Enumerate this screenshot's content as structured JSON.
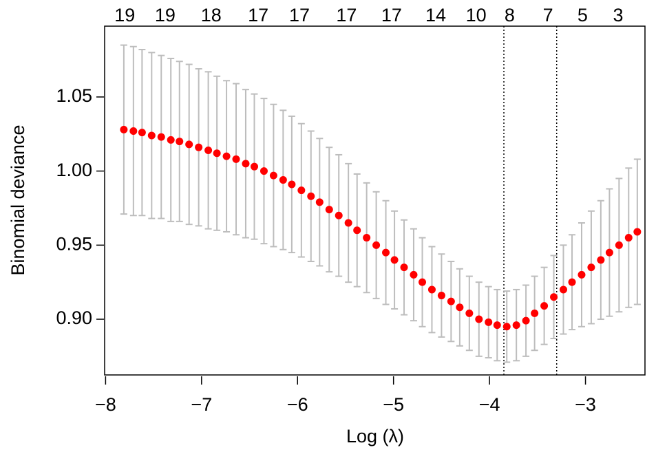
{
  "chart_data": {
    "type": "errorbar",
    "x_label": "Log (λ)",
    "y_label": "Binomial deviance",
    "x": [
      -7.81,
      -7.71,
      -7.62,
      -7.52,
      -7.42,
      -7.32,
      -7.23,
      -7.13,
      -7.03,
      -6.93,
      -6.84,
      -6.74,
      -6.64,
      -6.54,
      -6.45,
      -6.35,
      -6.25,
      -6.15,
      -6.06,
      -5.96,
      -5.86,
      -5.77,
      -5.67,
      -5.57,
      -5.47,
      -5.38,
      -5.28,
      -5.18,
      -5.08,
      -4.99,
      -4.89,
      -4.79,
      -4.7,
      -4.6,
      -4.5,
      -4.4,
      -4.31,
      -4.21,
      -4.11,
      -4.01,
      -3.92,
      -3.82,
      -3.72,
      -3.62,
      -3.53,
      -3.43,
      -3.33,
      -3.23,
      -3.14,
      -3.04,
      -2.94,
      -2.84,
      -2.75,
      -2.65,
      -2.55,
      -2.46
    ],
    "values": [
      1.028,
      1.027,
      1.026,
      1.024,
      1.023,
      1.021,
      1.02,
      1.018,
      1.016,
      1.014,
      1.012,
      1.01,
      1.008,
      1.005,
      1.003,
      1.0,
      0.997,
      0.994,
      0.991,
      0.987,
      0.983,
      0.979,
      0.974,
      0.97,
      0.965,
      0.96,
      0.955,
      0.95,
      0.945,
      0.94,
      0.935,
      0.93,
      0.925,
      0.92,
      0.916,
      0.912,
      0.908,
      0.904,
      0.9,
      0.898,
      0.896,
      0.895,
      0.896,
      0.899,
      0.904,
      0.909,
      0.915,
      0.92,
      0.925,
      0.93,
      0.935,
      0.94,
      0.945,
      0.95,
      0.955,
      0.959
    ],
    "errors": [
      0.057,
      0.057,
      0.056,
      0.056,
      0.055,
      0.055,
      0.054,
      0.054,
      0.053,
      0.053,
      0.052,
      0.051,
      0.051,
      0.05,
      0.049,
      0.049,
      0.048,
      0.047,
      0.046,
      0.045,
      0.044,
      0.043,
      0.042,
      0.041,
      0.04,
      0.038,
      0.037,
      0.036,
      0.035,
      0.033,
      0.032,
      0.031,
      0.03,
      0.029,
      0.028,
      0.027,
      0.026,
      0.025,
      0.025,
      0.024,
      0.024,
      0.024,
      0.024,
      0.024,
      0.025,
      0.026,
      0.028,
      0.03,
      0.032,
      0.035,
      0.038,
      0.04,
      0.043,
      0.045,
      0.047,
      0.049
    ],
    "color": "#ff0000",
    "error_color": "#bdbdbd",
    "vlines": [
      -3.85,
      -3.3
    ],
    "xlim": [
      -8.01,
      -2.38
    ],
    "ylim": [
      0.8624,
      1.0978
    ],
    "xticks": [
      {
        "value": -8,
        "label": "−8"
      },
      {
        "value": -7,
        "label": "−7"
      },
      {
        "value": -6,
        "label": "−6"
      },
      {
        "value": -5,
        "label": "−5"
      },
      {
        "value": -4,
        "label": "−4"
      },
      {
        "value": -3,
        "label": "−3"
      }
    ],
    "yticks": [
      {
        "value": 0.9,
        "label": "0.90"
      },
      0.95,
      {
        "value": 1,
        "label": "1.00"
      },
      1.05
    ],
    "top_ticks": [
      {
        "value": -7.8,
        "label": "19"
      },
      {
        "value": -7.38,
        "label": "19"
      },
      {
        "value": -6.9,
        "label": "18"
      },
      {
        "value": -6.41,
        "label": "17"
      },
      {
        "value": -5.98,
        "label": "17"
      },
      {
        "value": -5.49,
        "label": "17"
      },
      {
        "value": -5.02,
        "label": "17"
      },
      {
        "value": -4.56,
        "label": "14"
      },
      {
        "value": -4.14,
        "label": "10"
      },
      {
        "value": -3.79,
        "label": "8"
      },
      {
        "value": -3.39,
        "label": "7"
      },
      {
        "value": -3.03,
        "label": "5"
      },
      {
        "value": -2.66,
        "label": "3"
      }
    ]
  }
}
